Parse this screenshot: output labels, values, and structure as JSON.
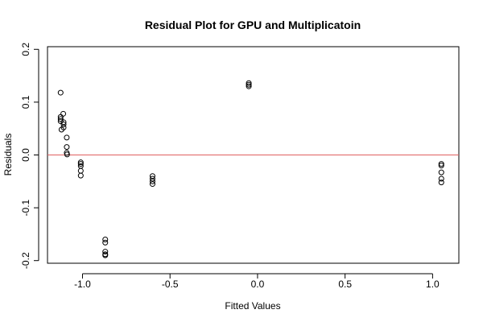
{
  "chart_data": {
    "type": "scatter",
    "title": "Residual Plot for GPU and Multiplicatoin",
    "xlabel": "Fitted Values",
    "ylabel": "Residuals",
    "xlim": [
      -1.2,
      1.15
    ],
    "ylim": [
      -0.205,
      0.205
    ],
    "x_ticks": [
      {
        "value": -1.0,
        "label": "-1.0"
      },
      {
        "value": -0.5,
        "label": "-0.5"
      },
      {
        "value": 0.0,
        "label": "0.0"
      },
      {
        "value": 0.5,
        "label": "0.5"
      },
      {
        "value": 1.0,
        "label": "1.0"
      }
    ],
    "y_ticks": [
      {
        "value": -0.2,
        "label": "-0.2"
      },
      {
        "value": -0.1,
        "label": "-0.1"
      },
      {
        "value": 0.0,
        "label": "0.0"
      },
      {
        "value": 0.1,
        "label": "0.1"
      },
      {
        "value": 0.2,
        "label": "0.2"
      }
    ],
    "reference_line": {
      "y": 0.0,
      "color": "#e06060"
    },
    "grid": false,
    "marker": "open-circle",
    "points": [
      {
        "x": -1.125,
        "y": 0.118
      },
      {
        "x": -1.125,
        "y": 0.072
      },
      {
        "x": -1.125,
        "y": 0.068
      },
      {
        "x": -1.125,
        "y": 0.064
      },
      {
        "x": -1.12,
        "y": 0.048
      },
      {
        "x": -1.11,
        "y": 0.078
      },
      {
        "x": -1.108,
        "y": 0.062
      },
      {
        "x": -1.108,
        "y": 0.058
      },
      {
        "x": -1.108,
        "y": 0.052
      },
      {
        "x": -1.09,
        "y": 0.033
      },
      {
        "x": -1.09,
        "y": 0.015
      },
      {
        "x": -1.09,
        "y": 0.004
      },
      {
        "x": -1.088,
        "y": 0.001
      },
      {
        "x": -1.01,
        "y": -0.014
      },
      {
        "x": -1.01,
        "y": -0.017
      },
      {
        "x": -1.01,
        "y": -0.021
      },
      {
        "x": -1.01,
        "y": -0.03
      },
      {
        "x": -1.01,
        "y": -0.039
      },
      {
        "x": -0.87,
        "y": -0.16
      },
      {
        "x": -0.87,
        "y": -0.166
      },
      {
        "x": -0.87,
        "y": -0.183
      },
      {
        "x": -0.87,
        "y": -0.188
      },
      {
        "x": -0.87,
        "y": -0.19
      },
      {
        "x": -0.6,
        "y": -0.04
      },
      {
        "x": -0.6,
        "y": -0.045
      },
      {
        "x": -0.6,
        "y": -0.05
      },
      {
        "x": -0.6,
        "y": -0.055
      },
      {
        "x": -0.05,
        "y": 0.136
      },
      {
        "x": -0.05,
        "y": 0.133
      },
      {
        "x": -0.05,
        "y": 0.13
      },
      {
        "x": 1.05,
        "y": -0.017
      },
      {
        "x": 1.05,
        "y": -0.02
      },
      {
        "x": 1.05,
        "y": -0.033
      },
      {
        "x": 1.05,
        "y": -0.045
      },
      {
        "x": 1.05,
        "y": -0.052
      }
    ]
  }
}
